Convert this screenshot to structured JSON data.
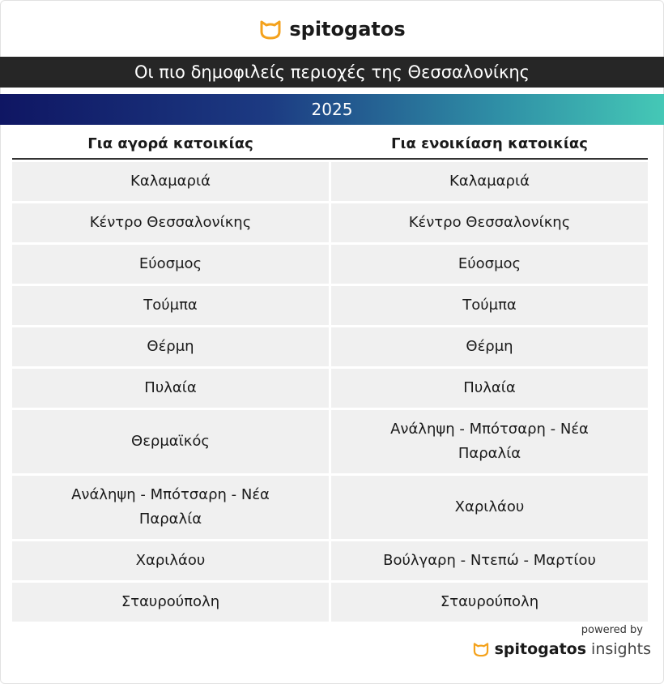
{
  "header": {
    "brand": "spitogatos",
    "title": "Οι πιο δημοφιλείς περιοχές της Θεσσαλονίκης",
    "year": "2025"
  },
  "table": {
    "columns": [
      "Για αγορά κατοικίας",
      "Για ενοικίαση κατοικίας"
    ],
    "rows": [
      [
        "Καλαμαριά",
        "Καλαμαριά"
      ],
      [
        "Κέντρο Θεσσαλονίκης",
        "Κέντρο Θεσσαλονίκης"
      ],
      [
        "Εύοσμος",
        "Εύοσμος"
      ],
      [
        "Τούμπα",
        "Τούμπα"
      ],
      [
        "Θέρμη",
        "Θέρμη"
      ],
      [
        "Πυλαία",
        "Πυλαία"
      ],
      [
        "Θερμαϊκός",
        "Ανάληψη - Μπότσαρη - Νέα Παραλία"
      ],
      [
        "Ανάληψη - Μπότσαρη - Νέα Παραλία",
        "Χαριλάου"
      ],
      [
        "Χαριλάου",
        "Βούλγαρη - Ντεπώ - Μαρτίου"
      ],
      [
        "Σταυρούπολη",
        "Σταυρούπολη"
      ]
    ]
  },
  "footer": {
    "powered_by": "powered by",
    "brand": "spitogatos",
    "suffix": "insights"
  }
}
